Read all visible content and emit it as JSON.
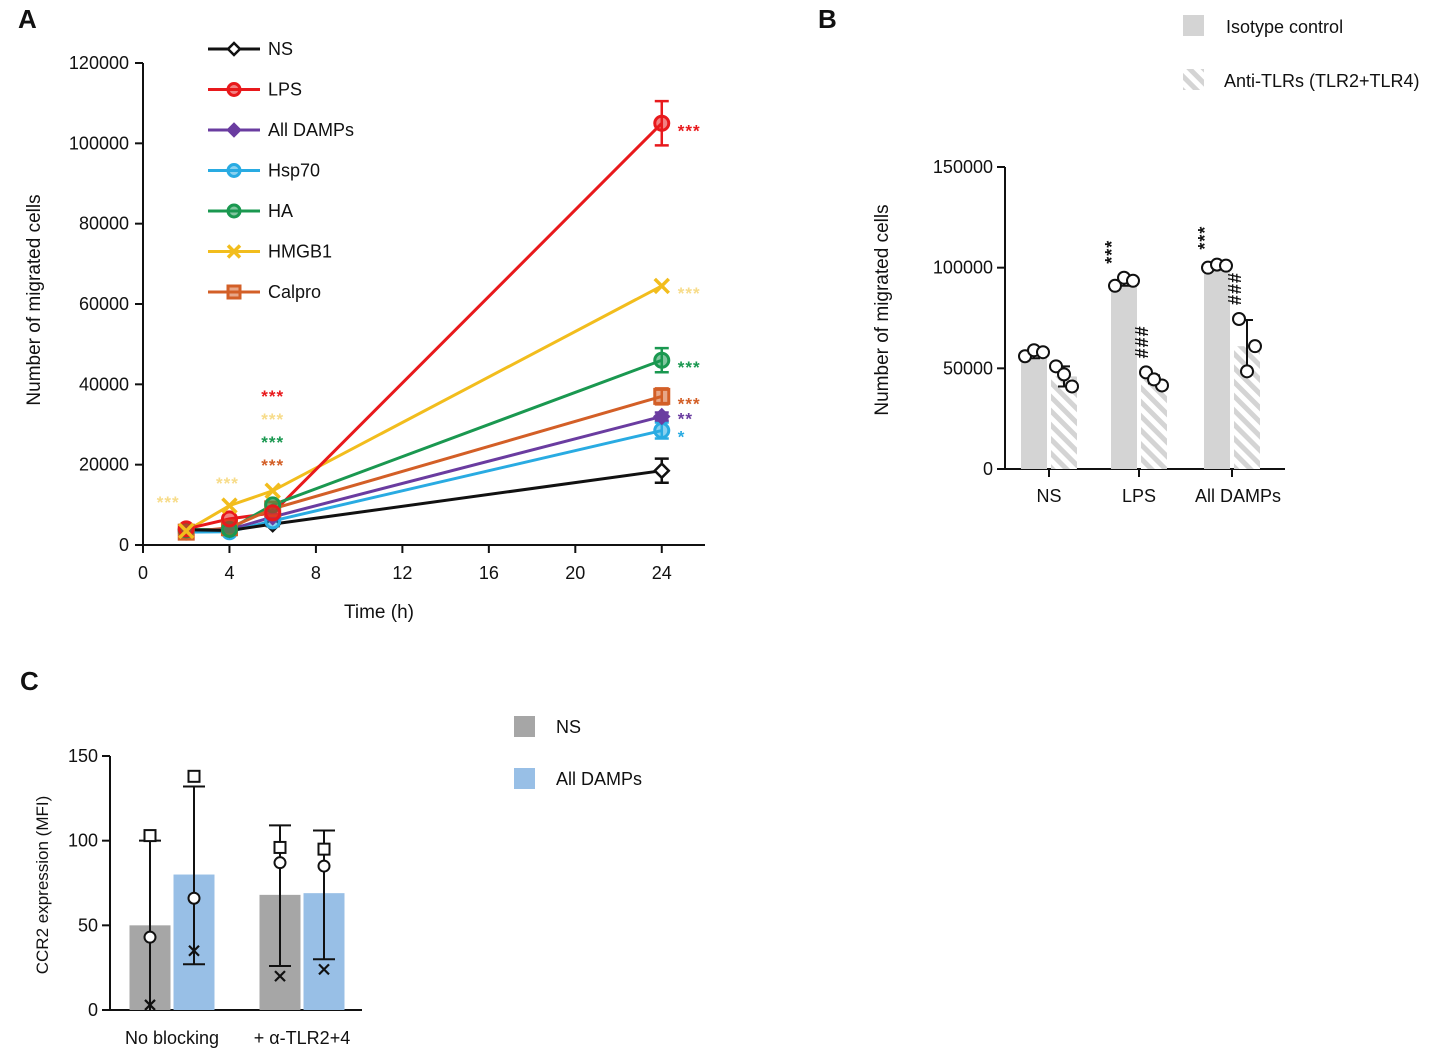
{
  "chart_data": [
    {
      "panel": "A",
      "type": "line",
      "xlabel": "Time (h)",
      "ylabel": "Number of migrated cells",
      "xlim": [
        0,
        26
      ],
      "ylim": [
        0,
        120000
      ],
      "xticks": [
        0,
        4,
        8,
        12,
        16,
        20,
        24
      ],
      "yticks": [
        0,
        20000,
        40000,
        60000,
        80000,
        100000,
        120000
      ],
      "x": [
        2,
        4,
        6,
        24
      ],
      "series": [
        {
          "name": "NS",
          "color": "#111111",
          "marker": "diamond-open",
          "values": [
            3800,
            3600,
            5200,
            18500
          ],
          "errors": [
            0,
            0,
            500,
            3000
          ]
        },
        {
          "name": "LPS",
          "color": "#e8191c",
          "marker": "circle",
          "values": [
            4000,
            6500,
            8000,
            105000
          ],
          "errors": [
            0,
            0,
            0,
            5500
          ]
        },
        {
          "name": "All DAMPs",
          "color": "#6a3ca0",
          "marker": "diamond",
          "values": [
            3500,
            3800,
            7000,
            32000
          ],
          "errors": [
            0,
            0,
            0,
            1000
          ]
        },
        {
          "name": "Hsp70",
          "color": "#29abe2",
          "marker": "circle",
          "values": [
            3200,
            3300,
            6000,
            28500
          ],
          "errors": [
            0,
            0,
            0,
            2000
          ]
        },
        {
          "name": "HA",
          "color": "#1a9850",
          "marker": "circle",
          "values": [
            3800,
            3900,
            10000,
            46000
          ],
          "errors": [
            0,
            0,
            0,
            3000
          ]
        },
        {
          "name": "HMGB1",
          "color": "#f2bd1d",
          "marker": "x",
          "values": [
            3500,
            9800,
            13500,
            64500
          ],
          "errors": [
            0,
            0,
            0,
            0
          ]
        },
        {
          "name": "Calpro",
          "color": "#d35f27",
          "marker": "square",
          "values": [
            3200,
            4300,
            9000,
            37000
          ],
          "errors": [
            0,
            0,
            0,
            2000
          ]
        }
      ],
      "annotations": [
        {
          "text": "***",
          "x": 2,
          "series": "HMGB1",
          "color": "#f7dc8a"
        },
        {
          "text": "***",
          "x": 4,
          "series": "HMGB1",
          "color": "#f7dc8a"
        },
        {
          "text": "***",
          "x": 6,
          "series": "LPS",
          "color": "#e8191c"
        },
        {
          "text": "***",
          "x": 6,
          "series": "HMGB1",
          "color": "#f7dc8a"
        },
        {
          "text": "***",
          "x": 6,
          "series": "HA",
          "color": "#1a9850"
        },
        {
          "text": "***",
          "x": 6,
          "series": "Calpro",
          "color": "#d35f27"
        },
        {
          "text": "***",
          "x": 24,
          "series": "LPS",
          "color": "#e8191c"
        },
        {
          "text": "***",
          "x": 24,
          "series": "HMGB1",
          "color": "#f7dc8a"
        },
        {
          "text": "***",
          "x": 24,
          "series": "HA",
          "color": "#1a9850"
        },
        {
          "text": "***",
          "x": 24,
          "series": "Calpro",
          "color": "#d35f27"
        },
        {
          "text": "**",
          "x": 24,
          "series": "All DAMPs",
          "color": "#6a3ca0"
        },
        {
          "text": "*",
          "x": 24,
          "series": "Hsp70",
          "color": "#29abe2"
        }
      ]
    },
    {
      "panel": "B",
      "type": "bar",
      "ylabel": "Number of migrated cells",
      "ylim": [
        0,
        150000
      ],
      "yticks": [
        0,
        50000,
        100000,
        150000
      ],
      "categories": [
        "NS",
        "LPS",
        "All DAMPs"
      ],
      "series": [
        {
          "name": "Isotype control",
          "style": "solid",
          "color": "#d4d4d4",
          "values": [
            57000,
            93000,
            101000
          ],
          "errors": [
            2000,
            2000,
            1000
          ],
          "points": [
            [
              56000,
              59000,
              58000
            ],
            [
              91000,
              95000,
              93500
            ],
            [
              100000,
              101500,
              101000
            ]
          ]
        },
        {
          "name": "Anti-TLRs (TLR2+TLR4)",
          "style": "hatched",
          "color": "#d4d4d4",
          "values": [
            46000,
            44500,
            61000
          ],
          "errors": [
            5000,
            2000,
            13000
          ],
          "points": [
            [
              51000,
              41000,
              47000
            ],
            [
              48000,
              41500,
              44500
            ],
            [
              74500,
              61000,
              48500
            ]
          ]
        }
      ],
      "annotations": [
        {
          "text": "***",
          "category": "LPS",
          "series": "Isotype control"
        },
        {
          "text": "***",
          "category": "All DAMPs",
          "series": "Isotype control"
        },
        {
          "text": "###",
          "category": "LPS",
          "series": "Anti-TLRs (TLR2+TLR4)"
        },
        {
          "text": "###",
          "category": "All DAMPs",
          "series": "Anti-TLRs (TLR2+TLR4)"
        }
      ]
    },
    {
      "panel": "C",
      "type": "bar",
      "ylabel": "CCR2 expression (MFI)",
      "ylim": [
        0,
        150
      ],
      "yticks": [
        0,
        50,
        100,
        150
      ],
      "categories": [
        "No blocking",
        "+ α-TLR2+4"
      ],
      "series": [
        {
          "name": "NS",
          "color": "#a6a6a6",
          "values": [
            50,
            68
          ],
          "err_low": [
            0,
            26
          ],
          "err_high": [
            100,
            109
          ],
          "points": [
            {
              "circle": 43,
              "square": 103,
              "x": 3
            },
            {
              "circle": 87,
              "square": 96,
              "x": 20
            }
          ]
        },
        {
          "name": "All DAMPs",
          "color": "#98bfe6",
          "values": [
            80,
            69
          ],
          "err_low": [
            27,
            30
          ],
          "err_high": [
            132,
            106
          ],
          "points": [
            {
              "circle": 66,
              "square": 138,
              "x": 35
            },
            {
              "circle": 85,
              "square": 95,
              "x": 24
            }
          ]
        }
      ]
    }
  ]
}
